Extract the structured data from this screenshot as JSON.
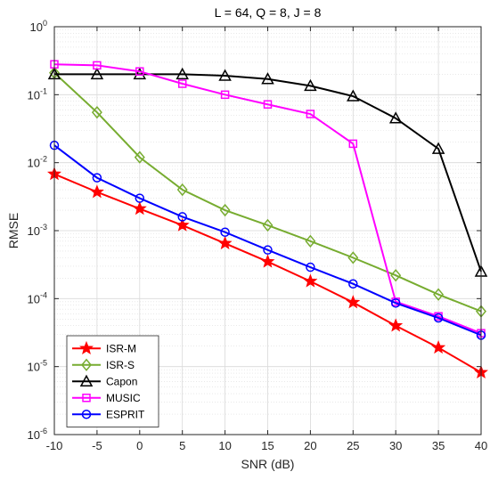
{
  "chart_data": {
    "type": "line",
    "title": "L = 64, Q = 8, J = 8",
    "xlabel": "SNR (dB)",
    "ylabel": "RMSE",
    "yscale": "log",
    "grid": true,
    "minor_grid": true,
    "legend_position": "bottom-left",
    "xlim": [
      -10,
      40
    ],
    "ylim": [
      1e-06,
      1
    ],
    "x": [
      -10,
      -5,
      0,
      5,
      10,
      15,
      20,
      25,
      30,
      35,
      40
    ],
    "x_ticks": [
      "-10",
      "-5",
      "0",
      "5",
      "10",
      "15",
      "20",
      "25",
      "30",
      "35",
      "40"
    ],
    "y_ticks": [
      {
        "value": 1e-06,
        "base": "10",
        "exp": "-6"
      },
      {
        "value": 1e-05,
        "base": "10",
        "exp": "-5"
      },
      {
        "value": 0.0001,
        "base": "10",
        "exp": "-4"
      },
      {
        "value": 0.001,
        "base": "10",
        "exp": "-3"
      },
      {
        "value": 0.01,
        "base": "10",
        "exp": "-2"
      },
      {
        "value": 0.1,
        "base": "10",
        "exp": "-1"
      },
      {
        "value": 1,
        "base": "10",
        "exp": "0"
      }
    ],
    "series": [
      {
        "name": "ISR-M",
        "color": "#ff0000",
        "marker": "star",
        "values": [
          0.0068,
          0.0037,
          0.0021,
          0.0012,
          0.00065,
          0.00035,
          0.00018,
          8.8e-05,
          4e-05,
          1.9e-05,
          8.2e-06
        ]
      },
      {
        "name": "ISR-S",
        "color": "#77ac30",
        "marker": "diamond",
        "values": [
          0.21,
          0.055,
          0.012,
          0.004,
          0.002,
          0.0012,
          0.0007,
          0.0004,
          0.00022,
          0.000115,
          6.5e-05
        ]
      },
      {
        "name": "Capon",
        "color": "#000000",
        "marker": "triangle",
        "values": [
          0.2,
          0.2,
          0.2,
          0.2,
          0.19,
          0.17,
          0.135,
          0.095,
          0.045,
          0.016,
          0.00025
        ]
      },
      {
        "name": "MUSIC",
        "color": "#ff00ff",
        "marker": "square",
        "values": [
          0.28,
          0.27,
          0.22,
          0.145,
          0.1,
          0.072,
          0.052,
          0.019,
          9e-05,
          5.5e-05,
          3.1e-05
        ]
      },
      {
        "name": "ESPRIT",
        "color": "#0000ff",
        "marker": "circle",
        "values": [
          0.018,
          0.006,
          0.003,
          0.0016,
          0.00095,
          0.00052,
          0.00029,
          0.000165,
          8.6e-05,
          5.2e-05,
          2.9e-05
        ]
      }
    ]
  }
}
